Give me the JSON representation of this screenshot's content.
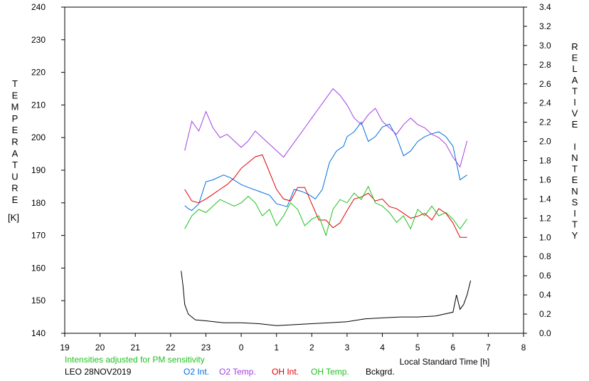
{
  "chart_data": {
    "type": "line",
    "left_axis": {
      "label_letters": [
        "T",
        "E",
        "M",
        "P",
        "E",
        "R",
        "A",
        "T",
        "U",
        "R",
        "E"
      ],
      "unit": "[K]",
      "ylim": [
        140,
        240
      ],
      "ticks": [
        140,
        150,
        160,
        170,
        180,
        190,
        200,
        210,
        220,
        230,
        240
      ]
    },
    "right_axis": {
      "label_letters": [
        "R",
        "E",
        "L",
        "A",
        "T",
        "I",
        "V",
        "E",
        "",
        "I",
        "N",
        "T",
        "E",
        "N",
        "S",
        "I",
        "T",
        "Y"
      ],
      "ylim": [
        0.0,
        3.4
      ],
      "ticks": [
        "0.0",
        "0.2",
        "0.4",
        "0.6",
        "0.8",
        "1.0",
        "1.2",
        "1.4",
        "1.6",
        "1.8",
        "2.0",
        "2.2",
        "2.4",
        "2.6",
        "2.8",
        "3.0",
        "3.2",
        "3.4"
      ]
    },
    "x_axis": {
      "label": "Local Standard Time [h]",
      "tick_labels": [
        "19",
        "20",
        "21",
        "22",
        "23",
        "0",
        "1",
        "2",
        "3",
        "4",
        "5",
        "6",
        "7",
        "8"
      ],
      "xlim": [
        19,
        32
      ]
    },
    "note": "Intensities adjusted for PM sensitivity",
    "station": "LEO 28NOV2019",
    "legend": [
      {
        "label": "O2 Int.",
        "color": "#0070e0"
      },
      {
        "label": "O2 Temp.",
        "color": "#a040e0"
      },
      {
        "label": "OH Int.",
        "color": "#e00000"
      },
      {
        "label": "OH Temp.",
        "color": "#20c020"
      },
      {
        "label": "Bckgrd.",
        "color": "#000000"
      }
    ],
    "series": [
      {
        "name": "O2 Int.",
        "axis": "right",
        "color": "#0070e0",
        "x": [
          22.4,
          22.5,
          22.6,
          22.8,
          23.0,
          23.2,
          23.5,
          23.7,
          24.0,
          24.2,
          24.5,
          24.8,
          25.0,
          25.3,
          25.5,
          25.7,
          25.9,
          26.1,
          26.3,
          26.5,
          26.7,
          26.9,
          27.0,
          27.2,
          27.4,
          27.6,
          27.8,
          28.0,
          28.2,
          28.4,
          28.6,
          28.8,
          29.0,
          29.2,
          29.4,
          29.6,
          29.8,
          30.0,
          30.2,
          30.4
        ],
        "y": [
          1.33,
          1.3,
          1.28,
          1.35,
          1.58,
          1.6,
          1.65,
          1.62,
          1.55,
          1.52,
          1.48,
          1.44,
          1.35,
          1.32,
          1.5,
          1.48,
          1.45,
          1.4,
          1.5,
          1.78,
          1.9,
          1.95,
          2.05,
          2.1,
          2.2,
          2.0,
          2.05,
          2.15,
          2.18,
          2.05,
          1.85,
          1.9,
          2.0,
          2.05,
          2.08,
          2.1,
          2.05,
          1.95,
          1.6,
          1.65
        ]
      },
      {
        "name": "O2 Temp.",
        "axis": "left",
        "color": "#a040e0",
        "x": [
          22.4,
          22.6,
          22.8,
          23.0,
          23.2,
          23.4,
          23.6,
          23.8,
          24.0,
          24.2,
          24.4,
          24.6,
          24.8,
          25.0,
          25.2,
          25.4,
          25.6,
          25.8,
          26.0,
          26.2,
          26.4,
          26.6,
          26.8,
          27.0,
          27.2,
          27.4,
          27.6,
          27.8,
          28.0,
          28.2,
          28.4,
          28.6,
          28.8,
          29.0,
          29.2,
          29.4,
          29.6,
          29.8,
          30.0,
          30.2,
          30.4
        ],
        "y": [
          196,
          205,
          202,
          208,
          203,
          200,
          201,
          199,
          197,
          199,
          202,
          200,
          198,
          196,
          194,
          197,
          200,
          203,
          206,
          209,
          212,
          215,
          213,
          210,
          206,
          204,
          207,
          209,
          205,
          203,
          201,
          204,
          206,
          204,
          203,
          201,
          200,
          198,
          194,
          191,
          199
        ]
      },
      {
        "name": "OH Int.",
        "axis": "right",
        "color": "#e00000",
        "x": [
          22.4,
          22.6,
          22.8,
          23.0,
          23.2,
          23.4,
          23.6,
          23.8,
          24.0,
          24.2,
          24.4,
          24.6,
          24.8,
          25.0,
          25.2,
          25.4,
          25.6,
          25.8,
          26.0,
          26.2,
          26.4,
          26.6,
          26.8,
          27.0,
          27.2,
          27.4,
          27.6,
          27.8,
          28.0,
          28.2,
          28.4,
          28.6,
          28.8,
          29.0,
          29.2,
          29.4,
          29.6,
          29.8,
          30.0,
          30.2,
          30.4
        ],
        "y": [
          1.5,
          1.38,
          1.36,
          1.4,
          1.45,
          1.5,
          1.55,
          1.62,
          1.72,
          1.78,
          1.84,
          1.86,
          1.68,
          1.5,
          1.4,
          1.38,
          1.52,
          1.52,
          1.35,
          1.18,
          1.18,
          1.1,
          1.15,
          1.28,
          1.4,
          1.42,
          1.46,
          1.38,
          1.4,
          1.32,
          1.3,
          1.25,
          1.2,
          1.22,
          1.25,
          1.18,
          1.3,
          1.25,
          1.15,
          1.0,
          1.0
        ]
      },
      {
        "name": "OH Temp.",
        "axis": "left",
        "color": "#20c020",
        "x": [
          22.4,
          22.6,
          22.8,
          23.0,
          23.2,
          23.4,
          23.6,
          23.8,
          24.0,
          24.2,
          24.4,
          24.6,
          24.8,
          25.0,
          25.2,
          25.4,
          25.6,
          25.8,
          26.0,
          26.2,
          26.4,
          26.6,
          26.8,
          27.0,
          27.2,
          27.4,
          27.6,
          27.8,
          28.0,
          28.2,
          28.4,
          28.6,
          28.8,
          29.0,
          29.2,
          29.4,
          29.6,
          29.8,
          30.0,
          30.2,
          30.4
        ],
        "y": [
          172,
          176,
          178,
          177,
          179,
          181,
          180,
          179,
          180,
          182,
          180,
          176,
          178,
          173,
          176,
          180,
          178,
          173,
          175,
          176,
          170,
          178,
          181,
          180,
          183,
          181,
          185,
          180,
          179,
          177,
          174,
          176,
          172,
          178,
          176,
          179,
          176,
          177,
          175,
          172,
          175
        ]
      },
      {
        "name": "Bckgrd.",
        "axis": "right",
        "color": "#000000",
        "x": [
          22.3,
          22.35,
          22.4,
          22.5,
          22.7,
          23.0,
          23.5,
          24.0,
          24.5,
          25.0,
          25.5,
          26.0,
          26.5,
          27.0,
          27.5,
          28.0,
          28.5,
          29.0,
          29.5,
          30.0,
          30.1,
          30.2,
          30.3,
          30.4,
          30.5
        ],
        "y": [
          0.65,
          0.5,
          0.3,
          0.2,
          0.14,
          0.13,
          0.11,
          0.11,
          0.1,
          0.08,
          0.09,
          0.1,
          0.11,
          0.12,
          0.15,
          0.16,
          0.17,
          0.17,
          0.18,
          0.22,
          0.4,
          0.25,
          0.3,
          0.4,
          0.55
        ]
      }
    ]
  }
}
